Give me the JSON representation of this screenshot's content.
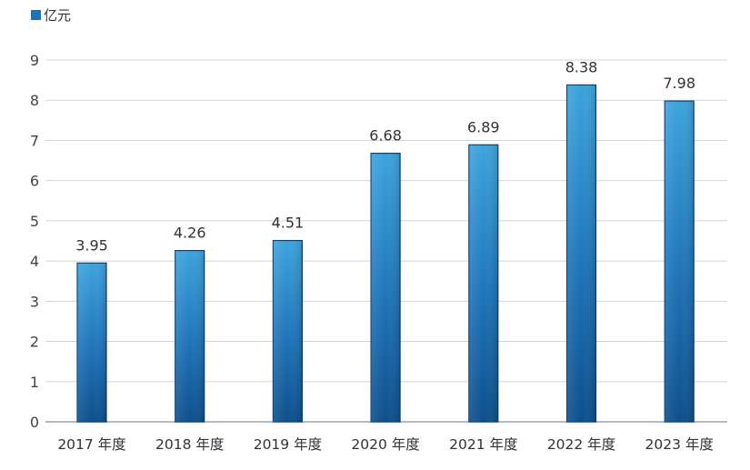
{
  "chart_data": {
    "type": "bar",
    "categories": [
      "2017 年度",
      "2018 年度",
      "2019 年度",
      "2020 年度",
      "2021 年度",
      "2022 年度",
      "2023 年度"
    ],
    "series": [
      {
        "name": "亿元",
        "values": [
          3.95,
          4.26,
          4.51,
          6.68,
          6.89,
          8.38,
          7.98
        ]
      }
    ],
    "value_labels": [
      "3.95",
      "4.26",
      "4.51",
      "6.68",
      "6.89",
      "8.38",
      "7.98"
    ],
    "y_ticks": [
      "0",
      "1",
      "2",
      "3",
      "4",
      "5",
      "6",
      "7",
      "8",
      "9"
    ],
    "ylim": [
      0,
      9
    ],
    "grid": true,
    "legend_position": "top-left",
    "bar_color": "#1e73b8",
    "bar_color_light": "#3da3dc",
    "bar_color_dark": "#0d4f8c"
  }
}
